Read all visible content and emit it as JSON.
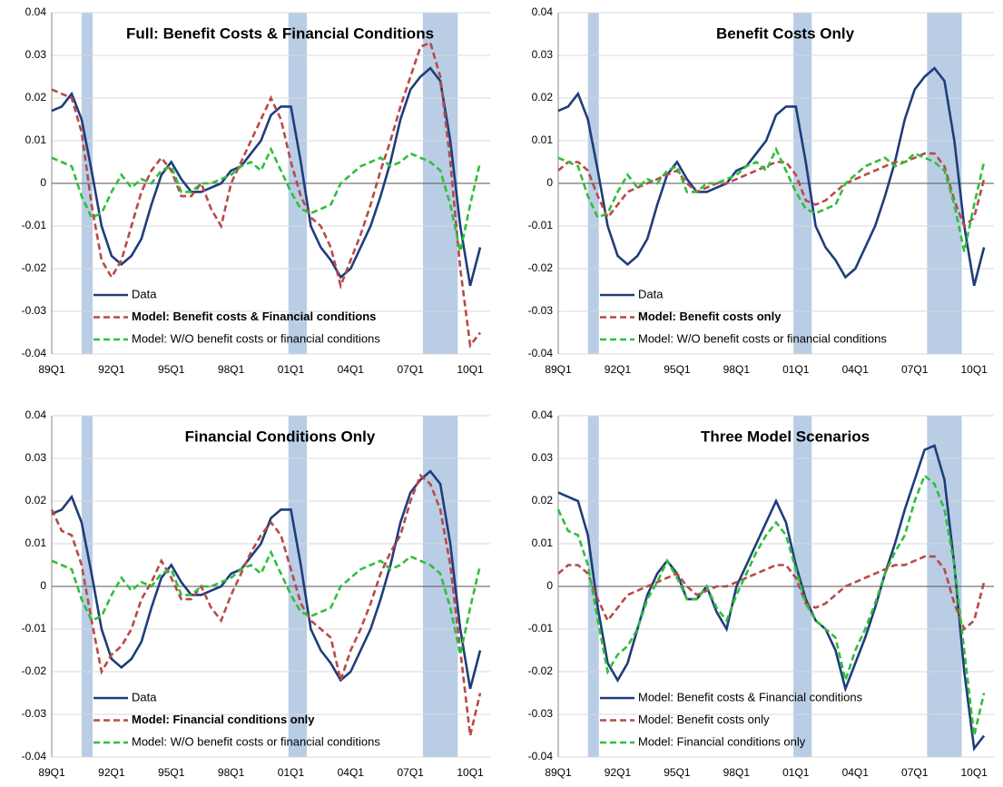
{
  "chart_data": [
    {
      "type": "line",
      "title": "Full: Benefit Costs & Financial Conditions",
      "categories": [
        "89Q1",
        null,
        null,
        null,
        null,
        null,
        "92Q1",
        null,
        null,
        null,
        null,
        null,
        "95Q1",
        null,
        null,
        null,
        null,
        null,
        "98Q1",
        null,
        null,
        null,
        null,
        null,
        "01Q1",
        null,
        null,
        null,
        null,
        null,
        "04Q1",
        null,
        null,
        null,
        null,
        null,
        "07Q1",
        null,
        null,
        null,
        null,
        null,
        "10Q1",
        null
      ],
      "ylim": [
        -0.04,
        0.04
      ],
      "yticks": [
        0.04,
        0.03,
        0.02,
        0.01,
        0,
        -0.01,
        -0.02,
        -0.03,
        -0.04
      ],
      "grid": true,
      "legend": "lower left",
      "series": [
        {
          "name": "Data",
          "color": "#1f3d7a",
          "dash": false,
          "values": [
            0.017,
            0.018,
            0.021,
            0.015,
            0.003,
            -0.01,
            -0.017,
            -0.019,
            -0.017,
            -0.013,
            -0.005,
            0.002,
            0.005,
            0.001,
            -0.002,
            -0.002,
            -0.001,
            0,
            0.003,
            0.004,
            0.007,
            0.01,
            0.016,
            0.018,
            0.018,
            0.005,
            -0.01,
            -0.015,
            -0.018,
            -0.022,
            -0.02,
            -0.015,
            -0.01,
            -0.003,
            0.005,
            0.015,
            0.022,
            0.025,
            0.027,
            0.024,
            0.01,
            -0.01,
            -0.024,
            -0.015
          ]
        },
        {
          "name": "Model: Benefit costs & Financial conditions",
          "color": "#b84a47",
          "dash": true,
          "values": [
            0.022,
            0.021,
            0.02,
            0.012,
            -0.005,
            -0.018,
            -0.022,
            -0.018,
            -0.01,
            -0.002,
            0.003,
            0.006,
            0.003,
            -0.003,
            -0.003,
            0,
            -0.006,
            -0.01,
            0,
            0.005,
            0.01,
            0.015,
            0.02,
            0.015,
            0.005,
            -0.003,
            -0.008,
            -0.01,
            -0.015,
            -0.024,
            -0.018,
            -0.012,
            -0.005,
            0.003,
            0.01,
            0.018,
            0.025,
            0.032,
            0.033,
            0.025,
            0.005,
            -0.02,
            -0.038,
            -0.035
          ]
        },
        {
          "name": "Model: W/O benefit costs or financial conditions",
          "color": "#2fbf3a",
          "dash": true,
          "values": [
            0.006,
            0.005,
            0.004,
            -0.003,
            -0.008,
            -0.007,
            -0.002,
            0.002,
            -0.001,
            0.001,
            0,
            0.003,
            0.004,
            -0.002,
            -0.002,
            0,
            0,
            0.001,
            0.002,
            0.004,
            0.005,
            0.003,
            0.008,
            0.003,
            -0.002,
            -0.006,
            -0.007,
            -0.006,
            -0.005,
            0,
            0.002,
            0.004,
            0.005,
            0.006,
            0.004,
            0.005,
            0.007,
            0.006,
            0.005,
            0.003,
            -0.005,
            -0.016,
            -0.005,
            0.005
          ]
        }
      ]
    },
    {
      "type": "line",
      "title": "Benefit Costs Only",
      "categories": [
        "89Q1",
        null,
        null,
        null,
        null,
        null,
        "92Q1",
        null,
        null,
        null,
        null,
        null,
        "95Q1",
        null,
        null,
        null,
        null,
        null,
        "98Q1",
        null,
        null,
        null,
        null,
        null,
        "01Q1",
        null,
        null,
        null,
        null,
        null,
        "04Q1",
        null,
        null,
        null,
        null,
        null,
        "07Q1",
        null,
        null,
        null,
        null,
        null,
        "10Q1",
        null
      ],
      "ylim": [
        -0.04,
        0.04
      ],
      "yticks": [
        0.04,
        0.03,
        0.02,
        0.01,
        0,
        -0.01,
        -0.02,
        -0.03,
        -0.04
      ],
      "grid": true,
      "legend": "lower left",
      "series": [
        {
          "name": "Data",
          "color": "#1f3d7a",
          "dash": false,
          "values": [
            0.017,
            0.018,
            0.021,
            0.015,
            0.003,
            -0.01,
            -0.017,
            -0.019,
            -0.017,
            -0.013,
            -0.005,
            0.002,
            0.005,
            0.001,
            -0.002,
            -0.002,
            -0.001,
            0,
            0.003,
            0.004,
            0.007,
            0.01,
            0.016,
            0.018,
            0.018,
            0.005,
            -0.01,
            -0.015,
            -0.018,
            -0.022,
            -0.02,
            -0.015,
            -0.01,
            -0.003,
            0.005,
            0.015,
            0.022,
            0.025,
            0.027,
            0.024,
            0.01,
            -0.01,
            -0.024,
            -0.015
          ]
        },
        {
          "name": "Model: Benefit costs only",
          "color": "#b84a47",
          "dash": true,
          "values": [
            0.003,
            0.005,
            0.005,
            0.003,
            -0.003,
            -0.008,
            -0.005,
            -0.002,
            -0.001,
            0,
            0.001,
            0.002,
            0.003,
            0,
            -0.002,
            -0.001,
            0,
            0,
            0.001,
            0.002,
            0.003,
            0.004,
            0.005,
            0.005,
            0.002,
            -0.004,
            -0.005,
            -0.004,
            -0.002,
            0,
            0.001,
            0.002,
            0.003,
            0.004,
            0.005,
            0.005,
            0.006,
            0.007,
            0.007,
            0.004,
            -0.004,
            -0.01,
            -0.008,
            0.001
          ]
        },
        {
          "name": "Model: W/O benefit costs or financial conditions",
          "color": "#2fbf3a",
          "dash": true,
          "values": [
            0.006,
            0.005,
            0.004,
            -0.003,
            -0.008,
            -0.007,
            -0.002,
            0.002,
            -0.001,
            0.001,
            0,
            0.003,
            0.004,
            -0.002,
            -0.002,
            0,
            0,
            0.001,
            0.002,
            0.004,
            0.005,
            0.003,
            0.008,
            0.003,
            -0.002,
            -0.006,
            -0.007,
            -0.006,
            -0.005,
            0,
            0.002,
            0.004,
            0.005,
            0.006,
            0.004,
            0.005,
            0.007,
            0.006,
            0.005,
            0.003,
            -0.005,
            -0.016,
            -0.005,
            0.005
          ]
        }
      ]
    },
    {
      "type": "line",
      "title": "Financial Conditions  Only",
      "categories": [
        "89Q1",
        null,
        null,
        null,
        null,
        null,
        "92Q1",
        null,
        null,
        null,
        null,
        null,
        "95Q1",
        null,
        null,
        null,
        null,
        null,
        "98Q1",
        null,
        null,
        null,
        null,
        null,
        "01Q1",
        null,
        null,
        null,
        null,
        null,
        "04Q1",
        null,
        null,
        null,
        null,
        null,
        "07Q1",
        null,
        null,
        null,
        null,
        null,
        "10Q1",
        null
      ],
      "ylim": [
        -0.04,
        0.04
      ],
      "yticks": [
        0.04,
        0.03,
        0.02,
        0.01,
        0,
        -0.01,
        -0.02,
        -0.03,
        -0.04
      ],
      "grid": true,
      "legend": "lower left",
      "series": [
        {
          "name": "Data",
          "color": "#1f3d7a",
          "dash": false,
          "values": [
            0.017,
            0.018,
            0.021,
            0.015,
            0.003,
            -0.01,
            -0.017,
            -0.019,
            -0.017,
            -0.013,
            -0.005,
            0.002,
            0.005,
            0.001,
            -0.002,
            -0.002,
            -0.001,
            0,
            0.003,
            0.004,
            0.007,
            0.01,
            0.016,
            0.018,
            0.018,
            0.005,
            -0.01,
            -0.015,
            -0.018,
            -0.022,
            -0.02,
            -0.015,
            -0.01,
            -0.003,
            0.005,
            0.015,
            0.022,
            0.025,
            0.027,
            0.024,
            0.01,
            -0.01,
            -0.024,
            -0.015
          ]
        },
        {
          "name": "Model: Financial conditions only",
          "color": "#b84a47",
          "dash": true,
          "values": [
            0.018,
            0.013,
            0.012,
            0.005,
            -0.008,
            -0.02,
            -0.016,
            -0.014,
            -0.01,
            -0.003,
            0.001,
            0.006,
            0.002,
            -0.003,
            -0.003,
            0,
            -0.005,
            -0.008,
            -0.002,
            0.003,
            0.008,
            0.012,
            0.015,
            0.012,
            0.004,
            -0.004,
            -0.008,
            -0.01,
            -0.012,
            -0.022,
            -0.015,
            -0.01,
            -0.004,
            0.003,
            0.008,
            0.012,
            0.02,
            0.026,
            0.024,
            0.018,
            0.005,
            -0.015,
            -0.035,
            -0.025
          ]
        },
        {
          "name": "Model: W/O benefit costs or financial conditions",
          "color": "#2fbf3a",
          "dash": true,
          "values": [
            0.006,
            0.005,
            0.004,
            -0.003,
            -0.008,
            -0.007,
            -0.002,
            0.002,
            -0.001,
            0.001,
            0,
            0.003,
            0.004,
            -0.002,
            -0.002,
            0,
            0,
            0.001,
            0.002,
            0.004,
            0.005,
            0.003,
            0.008,
            0.003,
            -0.002,
            -0.006,
            -0.007,
            -0.006,
            -0.005,
            0,
            0.002,
            0.004,
            0.005,
            0.006,
            0.004,
            0.005,
            0.007,
            0.006,
            0.005,
            0.003,
            -0.005,
            -0.016,
            -0.005,
            0.005
          ]
        }
      ]
    },
    {
      "type": "line",
      "title": "Three Model Scenarios",
      "categories": [
        "89Q1",
        null,
        null,
        null,
        null,
        null,
        "92Q1",
        null,
        null,
        null,
        null,
        null,
        "95Q1",
        null,
        null,
        null,
        null,
        null,
        "98Q1",
        null,
        null,
        null,
        null,
        null,
        "01Q1",
        null,
        null,
        null,
        null,
        null,
        "04Q1",
        null,
        null,
        null,
        null,
        null,
        "07Q1",
        null,
        null,
        null,
        null,
        null,
        "10Q1",
        null
      ],
      "ylim": [
        -0.04,
        0.04
      ],
      "yticks": [
        0.04,
        0.03,
        0.02,
        0.01,
        0,
        -0.01,
        -0.02,
        -0.03,
        -0.04
      ],
      "grid": true,
      "legend": "lower left",
      "series": [
        {
          "name": "Model: Benefit costs & Financial conditions",
          "color": "#1f3d7a",
          "dash": false,
          "values": [
            0.022,
            0.021,
            0.02,
            0.012,
            -0.005,
            -0.018,
            -0.022,
            -0.018,
            -0.01,
            -0.002,
            0.003,
            0.006,
            0.003,
            -0.003,
            -0.003,
            0,
            -0.006,
            -0.01,
            0,
            0.005,
            0.01,
            0.015,
            0.02,
            0.015,
            0.005,
            -0.003,
            -0.008,
            -0.01,
            -0.015,
            -0.024,
            -0.018,
            -0.012,
            -0.005,
            0.003,
            0.01,
            0.018,
            0.025,
            0.032,
            0.033,
            0.025,
            0.005,
            -0.02,
            -0.038,
            -0.035
          ]
        },
        {
          "name": "Model: Benefit costs only",
          "color": "#b84a47",
          "dash": true,
          "values": [
            0.003,
            0.005,
            0.005,
            0.003,
            -0.003,
            -0.008,
            -0.005,
            -0.002,
            -0.001,
            0,
            0.001,
            0.002,
            0.003,
            0,
            -0.002,
            -0.001,
            0,
            0,
            0.001,
            0.002,
            0.003,
            0.004,
            0.005,
            0.005,
            0.002,
            -0.004,
            -0.005,
            -0.004,
            -0.002,
            0,
            0.001,
            0.002,
            0.003,
            0.004,
            0.005,
            0.005,
            0.006,
            0.007,
            0.007,
            0.004,
            -0.004,
            -0.01,
            -0.008,
            0.001
          ]
        },
        {
          "name": "Model: Financial conditions only",
          "color": "#2fbf3a",
          "dash": true,
          "values": [
            0.018,
            0.013,
            0.012,
            0.005,
            -0.008,
            -0.02,
            -0.016,
            -0.014,
            -0.01,
            -0.003,
            0.001,
            0.006,
            0.002,
            -0.003,
            -0.003,
            0,
            -0.005,
            -0.008,
            -0.002,
            0.003,
            0.008,
            0.012,
            0.015,
            0.012,
            0.004,
            -0.004,
            -0.008,
            -0.01,
            -0.012,
            -0.022,
            -0.015,
            -0.01,
            -0.004,
            0.003,
            0.008,
            0.012,
            0.02,
            0.026,
            0.024,
            0.018,
            0.005,
            -0.015,
            -0.035,
            -0.025
          ]
        }
      ]
    }
  ]
}
